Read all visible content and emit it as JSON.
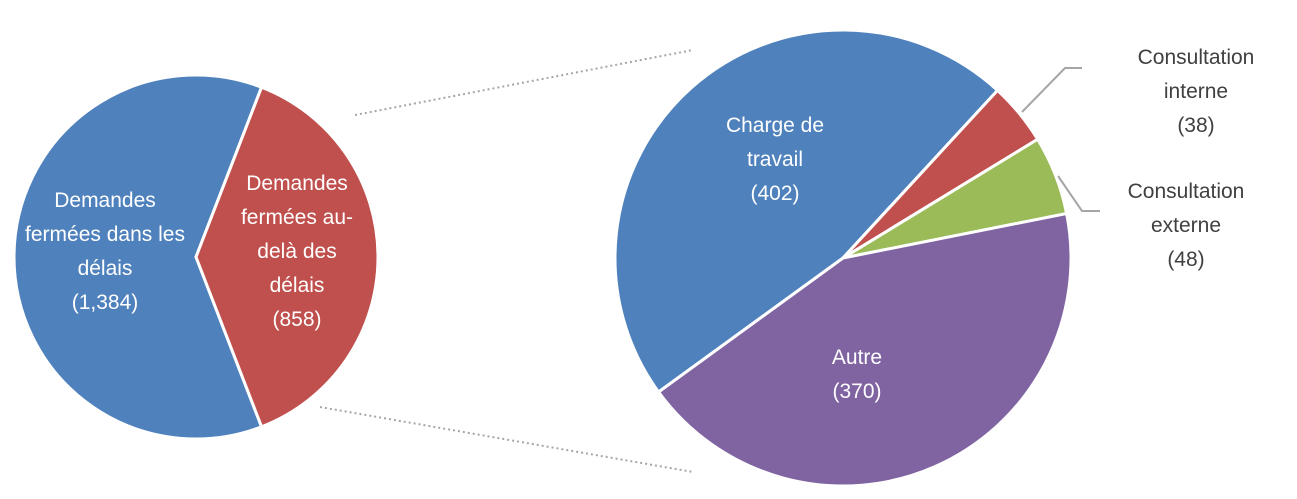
{
  "chart_data": [
    {
      "type": "pie",
      "categories": [
        "Demandes fermées dans les délais",
        "Demandes fermées au-delà des délais"
      ],
      "values": [
        1384,
        858
      ],
      "value_labels": [
        "(1,384)",
        "(858)"
      ],
      "colors": [
        "#4f81bd",
        "#c0504d"
      ]
    },
    {
      "type": "pie",
      "categories": [
        "Charge de travail",
        "Consultation interne",
        "Consultation externe",
        "Autre"
      ],
      "values": [
        402,
        38,
        48,
        370
      ],
      "value_labels": [
        "(402)",
        "(38)",
        "(48)",
        "(370)"
      ],
      "colors": [
        "#4f81bd",
        "#c0504d",
        "#9bbb59",
        "#8064a2"
      ]
    }
  ]
}
